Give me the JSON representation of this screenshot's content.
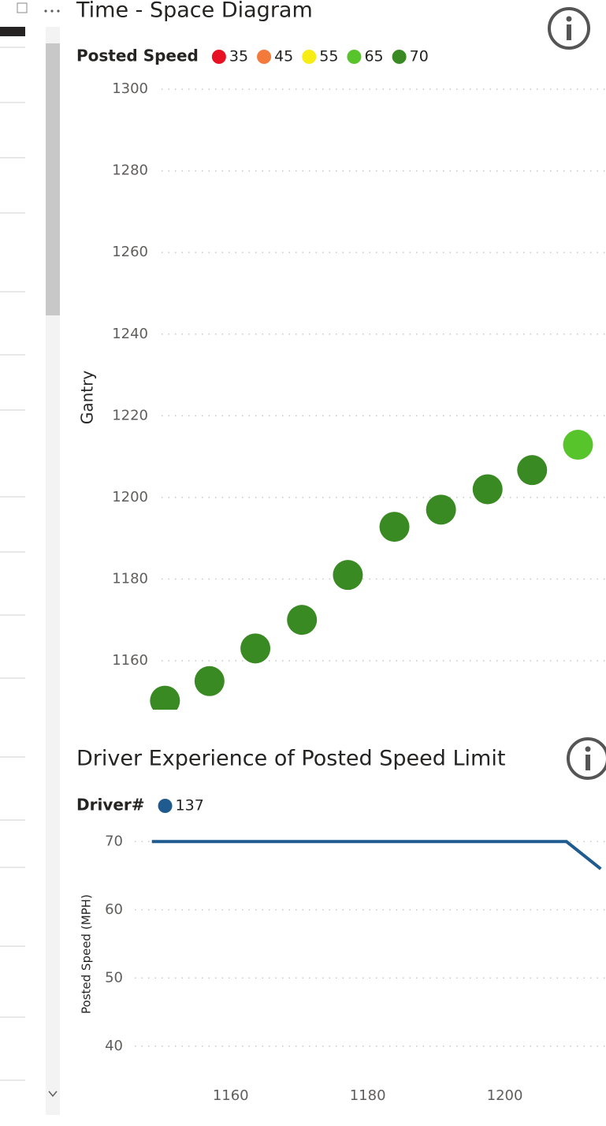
{
  "chart_data": [
    {
      "type": "scatter",
      "title": "Time - Space Diagram",
      "legend_title": "Posted Speed",
      "ylabel": "Gantry",
      "xlim": [
        1150,
        1215
      ],
      "ylim": [
        1148,
        1301
      ],
      "yticks": [
        1160,
        1180,
        1200,
        1220,
        1240,
        1260,
        1280,
        1300
      ],
      "grid": true,
      "series": [
        {
          "name": "35",
          "color": "#e81123",
          "x": [],
          "values": []
        },
        {
          "name": "45",
          "color": "#f47a3c",
          "x": [],
          "values": []
        },
        {
          "name": "55",
          "color": "#f7ec13",
          "x": [],
          "values": []
        },
        {
          "name": "65",
          "color": "#58c42c",
          "x": [
            1210.8
          ],
          "values": [
            1212.9
          ]
        },
        {
          "name": "70",
          "color": "#3a8a23",
          "x": [
            1150.5,
            1157,
            1163.7,
            1170.5,
            1177.2,
            1184,
            1190.8,
            1197.6,
            1204.1
          ],
          "values": [
            1150.2,
            1155,
            1163,
            1170,
            1181,
            1192.8,
            1197,
            1202,
            1206.7
          ]
        }
      ]
    },
    {
      "type": "line",
      "title": "Driver Experience of Posted Speed Limit",
      "legend_title": "Driver#",
      "ylabel": "Posted Speed (MPH)",
      "xlim": [
        1146,
        1215
      ],
      "xticks": [
        1160,
        1180,
        1200
      ],
      "ylim": [
        35,
        72
      ],
      "yticks": [
        40,
        50,
        60,
        70
      ],
      "grid": true,
      "series": [
        {
          "name": "137",
          "color": "#1f5b8e",
          "x": [
            1148.5,
            1209,
            1214
          ],
          "values": [
            70,
            70,
            66
          ]
        }
      ]
    }
  ]
}
